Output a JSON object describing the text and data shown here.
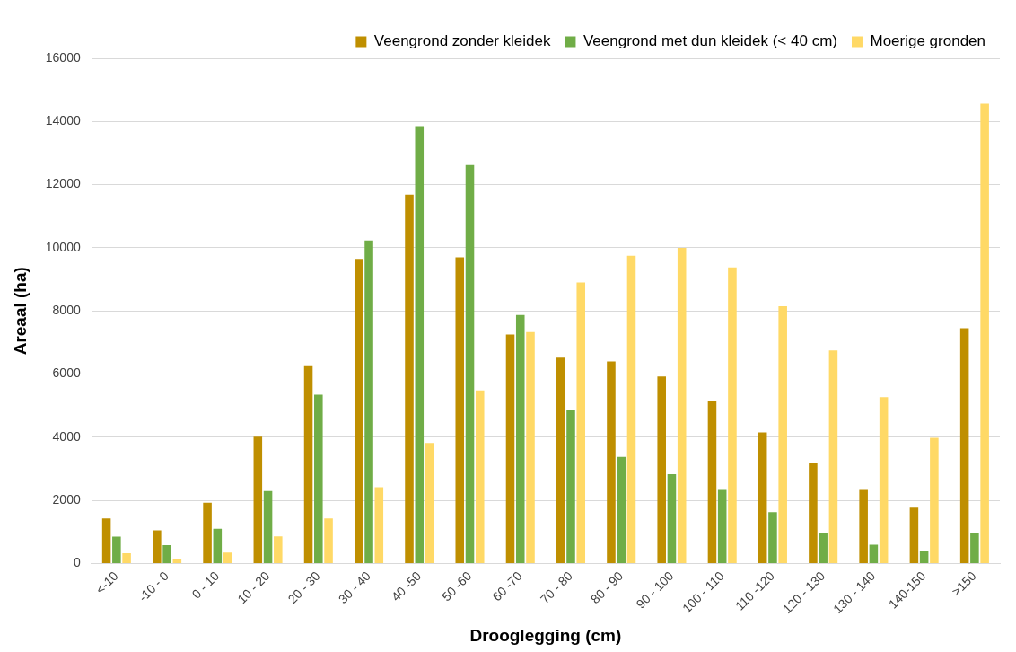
{
  "chart_data": {
    "type": "bar",
    "xlabel": "Drooglegging (cm)",
    "ylabel": "Areaal (ha)",
    "categories": [
      "<-10",
      "-10 - 0",
      "0 - 10",
      "10 - 20",
      "20 - 30",
      "30 - 40",
      "40 -50",
      "50 -60",
      "60 -70",
      "70 - 80",
      "80 - 90",
      "90 - 100",
      "100 - 110",
      "110 -120",
      "120 - 130",
      "130 - 140",
      "140-150",
      ">150"
    ],
    "series": [
      {
        "name": "Veengrond zonder kleidek",
        "color": "#bf8f00",
        "values": [
          1430,
          1050,
          1930,
          4020,
          6280,
          9650,
          11680,
          9700,
          7250,
          6520,
          6400,
          5920,
          5150,
          4150,
          3180,
          2330,
          1770,
          7450
        ]
      },
      {
        "name": "Veengrond met dun kleidek (< 40 cm)",
        "color": "#70ad47",
        "values": [
          850,
          580,
          1100,
          2300,
          5350,
          10230,
          13850,
          12620,
          7870,
          4850,
          3380,
          2830,
          2330,
          1630,
          980,
          600,
          390,
          980
        ]
      },
      {
        "name": "Moerige gronden",
        "color": "#ffd966",
        "values": [
          330,
          130,
          350,
          860,
          1430,
          2420,
          3820,
          5480,
          7330,
          8900,
          9750,
          10000,
          9380,
          8150,
          6750,
          5270,
          3980,
          14560
        ]
      }
    ],
    "ylim": [
      0,
      16000
    ],
    "yticks": [
      0,
      2000,
      4000,
      6000,
      8000,
      10000,
      12000,
      14000,
      16000
    ],
    "grid": "y",
    "legend": "top right"
  }
}
